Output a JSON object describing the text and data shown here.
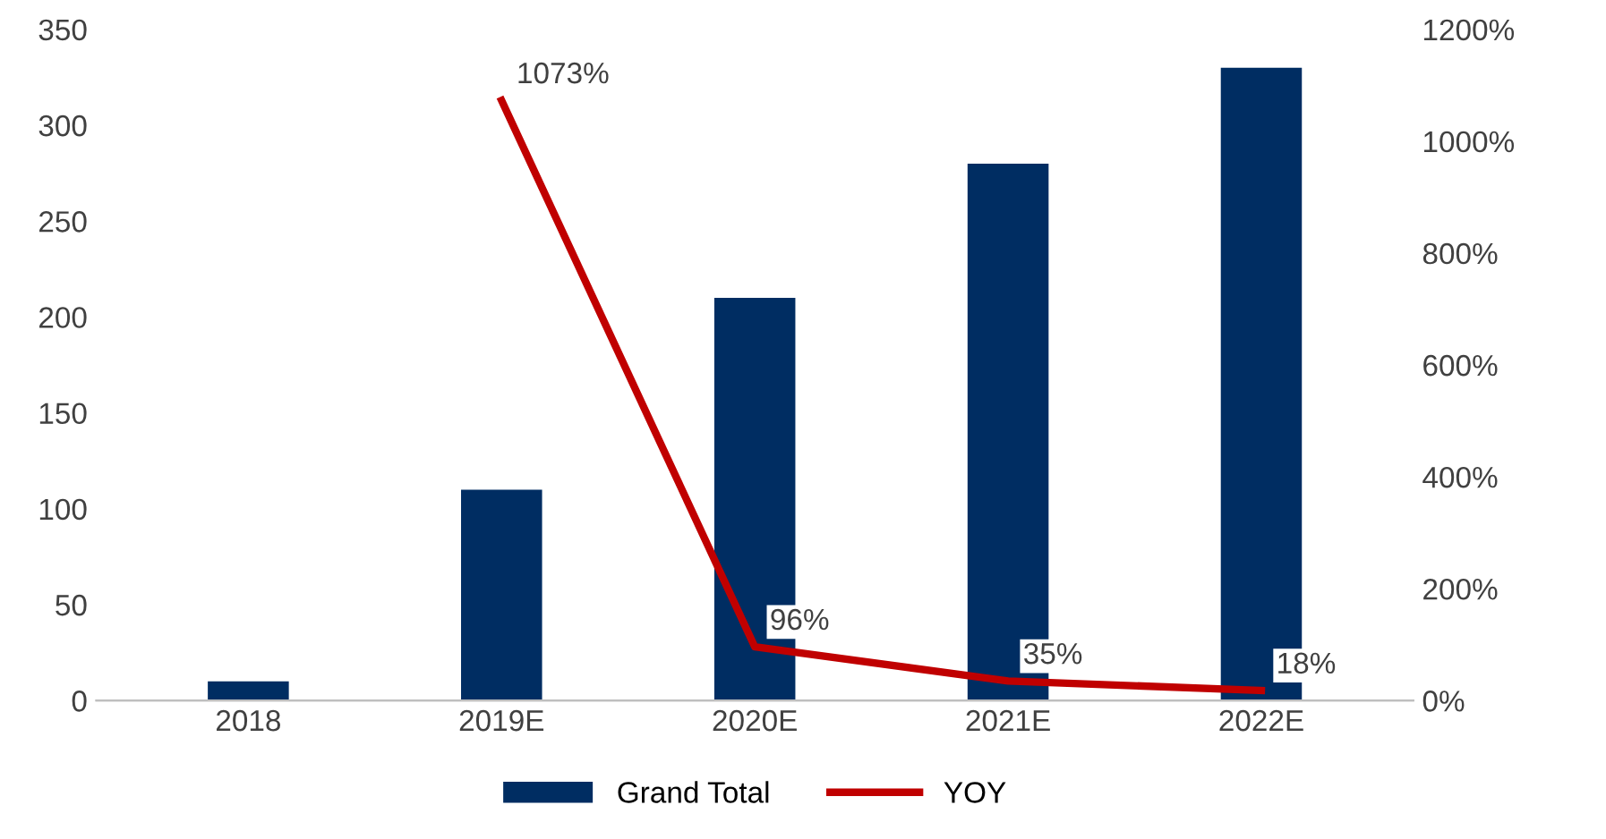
{
  "chart_data": {
    "type": "bar",
    "categories": [
      "2018",
      "2019E",
      "2020E",
      "2021E",
      "2022E"
    ],
    "series": [
      {
        "name": "Grand Total",
        "color": "#002d62",
        "values": [
          10,
          110,
          210,
          280,
          330
        ]
      },
      {
        "name": "YOY",
        "type": "line",
        "axis": "y2",
        "color": "#c00000",
        "values": [
          null,
          1073,
          96,
          35,
          18
        ],
        "value_labels": [
          null,
          "1073%",
          "96%",
          "35%",
          "18%"
        ]
      }
    ],
    "ylim": [
      0,
      350
    ],
    "yticks": [
      0,
      50,
      100,
      150,
      200,
      250,
      300,
      350
    ],
    "y2lim": [
      0,
      1200
    ],
    "y2ticks": [
      {
        "value": 0,
        "label": "0%"
      },
      {
        "value": 200,
        "label": "200%"
      },
      {
        "value": 400,
        "label": "400%"
      },
      {
        "value": 600,
        "label": "600%"
      },
      {
        "value": 800,
        "label": "800%"
      },
      {
        "value": 1000,
        "label": "1000%"
      },
      {
        "value": 1200,
        "label": "1200%"
      }
    ],
    "grid": false,
    "legend": "bottom",
    "marker": "none",
    "line_style": "solid"
  }
}
